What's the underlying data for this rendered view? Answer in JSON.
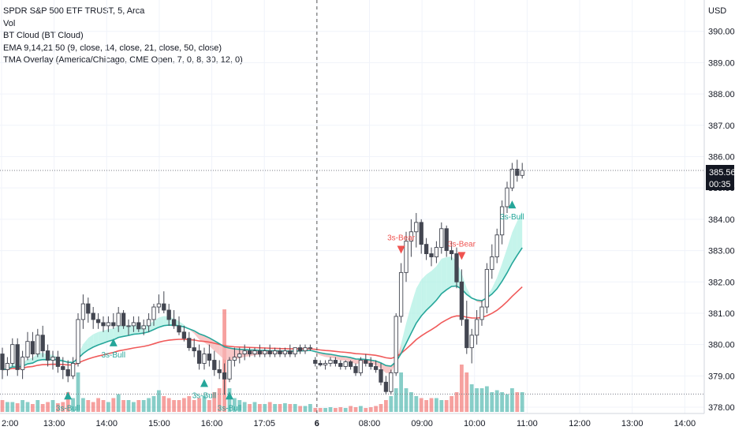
{
  "legend": {
    "title": "SPDR S&P 500 ETF TRUST, 5, Arca",
    "vol": "Vol",
    "cloud": "BT Cloud (BT Cloud)",
    "ema": "EMA 9,14,21,50 (9, close, 14, close, 21, close, 50, close)",
    "tma": "TMA Overlay (America/Chicago, CME Open, 7, 0, 8, 30, 12, 0)"
  },
  "price_axis": {
    "currency": "USD",
    "last_price": "385.56",
    "countdown": "00:35"
  },
  "colors": {
    "bull": "#26a69a",
    "bear": "#ef5350",
    "candle_up": "#ffffff",
    "candle_down": "#434651",
    "ema_slow": "#f05a5a",
    "ema_fast": "#26a69a",
    "cloud_bull": "#b2f0e4",
    "cloud_bear": "#f7b4b4"
  },
  "chart_data": {
    "type": "candlestick",
    "ylim": [
      377.8,
      391.0
    ],
    "yticks": [
      378,
      379,
      380,
      381,
      382,
      383,
      384,
      385,
      386,
      387,
      388,
      389,
      390
    ],
    "ytick_labels": [
      "378.00",
      "379.00",
      "380.00",
      "381.00",
      "382.00",
      "383.00",
      "384.00",
      "385.00",
      "386.00",
      "387.00",
      "388.00",
      "389.00",
      "390.00"
    ],
    "xticks": [
      "2:00",
      "13:00",
      "14:00",
      "15:00",
      "16:00",
      "17:05",
      "6",
      "08:00",
      "09:00",
      "10:00",
      "11:00",
      "12:00",
      "13:00",
      "14:00"
    ],
    "last_price": 385.56,
    "signals": [
      {
        "label": "3s-Bull",
        "type": "bull",
        "bar": 13
      },
      {
        "label": "3s-Bull",
        "type": "bull",
        "bar": 22
      },
      {
        "label": "3s-Bull",
        "type": "bull",
        "bar": 40
      },
      {
        "label": "3s-Bull",
        "type": "bull",
        "bar": 45
      },
      {
        "label": "3s-Bear",
        "type": "bear",
        "bar": 79
      },
      {
        "label": "3s-Bear",
        "type": "bear",
        "bar": 91
      },
      {
        "label": "3s-Bull",
        "type": "bull",
        "bar": 101
      }
    ],
    "ohlc": [
      [
        379.7,
        379.9,
        378.9,
        379.2
      ],
      [
        379.2,
        379.6,
        379.0,
        379.4
      ],
      [
        379.4,
        380.2,
        379.3,
        380.0
      ],
      [
        380.0,
        380.2,
        379.0,
        379.2
      ],
      [
        379.2,
        379.8,
        378.9,
        379.6
      ],
      [
        379.6,
        380.4,
        379.5,
        380.1
      ],
      [
        380.1,
        380.4,
        379.5,
        379.7
      ],
      [
        379.7,
        380.5,
        379.6,
        380.3
      ],
      [
        380.3,
        380.6,
        379.6,
        379.8
      ],
      [
        379.8,
        380.0,
        379.3,
        379.5
      ],
      [
        379.5,
        379.8,
        379.2,
        379.6
      ],
      [
        379.6,
        379.8,
        379.1,
        379.3
      ],
      [
        379.3,
        379.6,
        378.9,
        379.2
      ],
      [
        379.2,
        379.5,
        378.8,
        379.0
      ],
      [
        379.0,
        379.6,
        378.9,
        379.4
      ],
      [
        379.4,
        381.0,
        379.3,
        380.8
      ],
      [
        380.8,
        381.6,
        380.5,
        381.3
      ],
      [
        381.3,
        381.5,
        380.7,
        381.0
      ],
      [
        381.0,
        381.2,
        380.5,
        380.8
      ],
      [
        380.8,
        381.0,
        380.5,
        380.7
      ],
      [
        380.7,
        380.9,
        380.4,
        380.6
      ],
      [
        380.6,
        380.9,
        380.4,
        380.7
      ],
      [
        380.7,
        381.0,
        380.5,
        380.6
      ],
      [
        380.6,
        381.2,
        380.4,
        381.0
      ],
      [
        381.0,
        381.1,
        380.5,
        380.6
      ],
      [
        380.6,
        380.8,
        380.3,
        380.6
      ],
      [
        380.6,
        380.9,
        380.4,
        380.7
      ],
      [
        380.7,
        380.9,
        380.4,
        380.5
      ],
      [
        380.5,
        380.8,
        380.3,
        380.6
      ],
      [
        380.6,
        381.0,
        380.4,
        380.8
      ],
      [
        380.8,
        381.3,
        380.6,
        381.2
      ],
      [
        381.2,
        381.6,
        381.0,
        381.3
      ],
      [
        381.3,
        381.7,
        381.0,
        381.1
      ],
      [
        381.1,
        381.3,
        380.6,
        380.8
      ],
      [
        380.8,
        381.1,
        380.5,
        380.6
      ],
      [
        380.6,
        380.9,
        380.3,
        380.4
      ],
      [
        380.4,
        380.6,
        380.1,
        380.2
      ],
      [
        380.2,
        380.4,
        379.8,
        379.9
      ],
      [
        379.9,
        380.2,
        379.6,
        379.8
      ],
      [
        379.8,
        380.0,
        379.2,
        379.4
      ],
      [
        379.4,
        379.9,
        379.2,
        379.7
      ],
      [
        379.7,
        380.0,
        379.3,
        379.5
      ],
      [
        379.5,
        379.8,
        379.0,
        379.2
      ],
      [
        379.2,
        379.5,
        378.9,
        379.1
      ],
      [
        379.1,
        379.4,
        378.4,
        378.9
      ],
      [
        378.9,
        379.6,
        378.8,
        379.5
      ],
      [
        379.5,
        379.9,
        379.3,
        379.6
      ],
      [
        379.6,
        379.9,
        379.4,
        379.7
      ],
      [
        379.7,
        380.0,
        379.5,
        379.8
      ],
      [
        379.8,
        379.9,
        379.6,
        379.7
      ],
      [
        379.7,
        379.9,
        379.6,
        379.8
      ],
      [
        379.8,
        380.0,
        379.6,
        379.7
      ],
      [
        379.7,
        379.9,
        379.6,
        379.8
      ],
      [
        379.8,
        380.0,
        379.6,
        379.7
      ],
      [
        379.7,
        379.9,
        379.6,
        379.8
      ],
      [
        379.8,
        379.9,
        379.6,
        379.7
      ],
      [
        379.7,
        379.9,
        379.6,
        379.8
      ],
      [
        379.8,
        380.0,
        379.6,
        379.7
      ],
      [
        379.7,
        379.9,
        379.6,
        379.9
      ],
      [
        379.9,
        380.0,
        379.7,
        379.8
      ],
      [
        379.8,
        380.0,
        379.7,
        379.9
      ],
      [
        379.9,
        380.0,
        379.8,
        379.9
      ],
      [
        379.5,
        379.6,
        379.3,
        379.4
      ],
      [
        379.4,
        379.5,
        379.3,
        379.35
      ],
      [
        379.35,
        379.5,
        379.2,
        379.4
      ],
      [
        379.4,
        379.6,
        379.3,
        379.5
      ],
      [
        379.5,
        379.6,
        379.3,
        379.4
      ],
      [
        379.4,
        379.5,
        379.2,
        379.3
      ],
      [
        379.3,
        379.5,
        379.2,
        379.45
      ],
      [
        379.45,
        379.5,
        379.2,
        379.3
      ],
      [
        379.3,
        379.4,
        379.0,
        379.1
      ],
      [
        379.1,
        379.6,
        379.0,
        379.5
      ],
      [
        379.5,
        379.7,
        379.3,
        379.4
      ],
      [
        379.4,
        379.6,
        379.2,
        379.3
      ],
      [
        379.3,
        379.5,
        379.1,
        379.2
      ],
      [
        379.2,
        379.4,
        378.7,
        378.8
      ],
      [
        378.8,
        379.0,
        378.4,
        378.5
      ],
      [
        378.5,
        379.2,
        378.4,
        379.1
      ],
      [
        379.1,
        381.0,
        379.0,
        380.9
      ],
      [
        380.9,
        382.6,
        380.7,
        382.3
      ],
      [
        382.3,
        383.6,
        382.0,
        383.3
      ],
      [
        383.3,
        384.0,
        382.8,
        383.6
      ],
      [
        383.6,
        384.2,
        383.1,
        383.9
      ],
      [
        383.9,
        384.0,
        382.9,
        383.2
      ],
      [
        383.2,
        383.4,
        382.7,
        382.9
      ],
      [
        382.9,
        383.1,
        382.5,
        382.8
      ],
      [
        382.8,
        383.3,
        382.6,
        383.1
      ],
      [
        383.1,
        383.9,
        382.9,
        383.7
      ],
      [
        383.7,
        383.8,
        382.8,
        383.0
      ],
      [
        383.0,
        383.3,
        382.7,
        382.9
      ],
      [
        382.9,
        383.1,
        381.8,
        382.0
      ],
      [
        382.0,
        382.4,
        380.6,
        380.8
      ],
      [
        380.8,
        381.4,
        379.7,
        379.9
      ],
      [
        379.9,
        380.5,
        379.4,
        380.3
      ],
      [
        380.3,
        381.1,
        380.0,
        380.8
      ],
      [
        380.8,
        381.4,
        380.6,
        381.2
      ],
      [
        381.2,
        382.6,
        381.0,
        382.4
      ],
      [
        382.4,
        383.2,
        382.1,
        382.8
      ],
      [
        382.8,
        383.7,
        382.6,
        383.5
      ],
      [
        383.5,
        384.6,
        383.2,
        384.4
      ],
      [
        384.4,
        385.2,
        384.2,
        385.0
      ],
      [
        385.0,
        385.8,
        384.9,
        385.6
      ],
      [
        385.6,
        385.9,
        385.2,
        385.4
      ],
      [
        385.4,
        385.8,
        385.3,
        385.56
      ]
    ],
    "volume": [
      0.3,
      0.25,
      0.25,
      0.22,
      0.3,
      0.25,
      0.2,
      0.3,
      0.2,
      0.25,
      0.3,
      0.22,
      0.25,
      0.5,
      0.35,
      1.0,
      0.35,
      0.3,
      0.25,
      0.35,
      0.3,
      0.25,
      0.35,
      0.45,
      0.3,
      0.3,
      0.25,
      0.3,
      0.3,
      0.35,
      0.4,
      0.55,
      0.4,
      0.35,
      0.3,
      0.3,
      0.35,
      0.4,
      0.3,
      0.35,
      0.4,
      0.3,
      0.5,
      0.6,
      2.6,
      0.6,
      0.35,
      0.3,
      0.25,
      0.2,
      0.25,
      0.2,
      0.2,
      0.25,
      0.2,
      0.2,
      0.22,
      0.2,
      0.2,
      0.15,
      0.15,
      0.2,
      0.1,
      0.1,
      0.1,
      0.12,
      0.1,
      0.12,
      0.1,
      0.15,
      0.12,
      0.15,
      0.1,
      0.12,
      0.15,
      0.2,
      0.3,
      0.4,
      0.6,
      1.0,
      0.6,
      0.5,
      0.4,
      0.35,
      0.3,
      0.35,
      0.35,
      0.3,
      0.3,
      0.4,
      0.5,
      1.2,
      1.0,
      0.7,
      0.6,
      0.6,
      0.65,
      0.5,
      0.55,
      0.5,
      0.45,
      0.6,
      0.5,
      0.5
    ],
    "volume_max": 2.6
  }
}
